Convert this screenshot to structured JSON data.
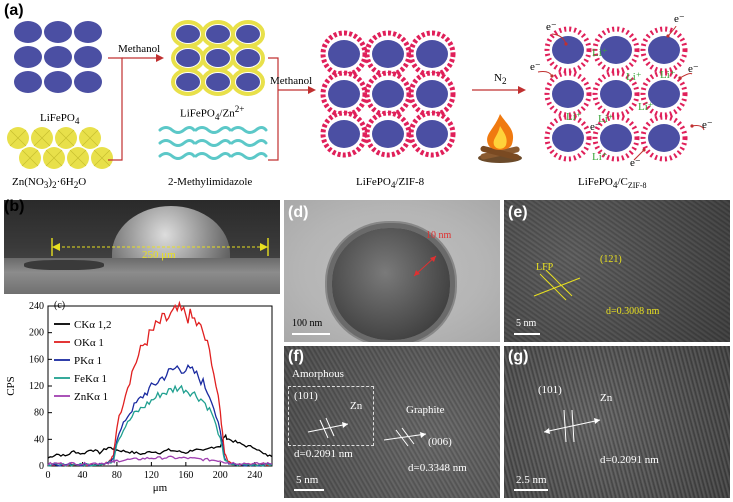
{
  "panel_a": {
    "label": "(a)",
    "lifepo4": "LiFePO",
    "lifepo4_sub": "4",
    "zn_salt_pre": "Zn(NO",
    "zn_salt_sub1": "3",
    "zn_salt_mid": ")",
    "zn_salt_sub2": "2",
    "zn_salt_post": "·6H",
    "zn_salt_sub3": "2",
    "zn_salt_end": "O",
    "methanol_1": "Methanol",
    "lifepo4_zn_pre": "LiFePO",
    "lifepo4_zn_sub": "4",
    "lifepo4_zn_mid": "/Zn",
    "lifepo4_zn_sup": "2+",
    "methylimidazole": "2-Methylimidazole",
    "methanol_2": "Methanol",
    "lifepo4_zif_pre": "LiFePO",
    "lifepo4_zif_sub": "4",
    "lifepo4_zif_post": "/ZIF-8",
    "n2": "N",
    "n2_sub": "2",
    "final_pre": "LiFePO",
    "final_sub": "4",
    "final_mid": "/C",
    "final_sub2": "ZIF-8",
    "electron": "e⁻",
    "li_ion": "Li⁺",
    "colors": {
      "core": "#4b4fa3",
      "zn_shell": "#e8e04a",
      "zif": "#e0205a",
      "mimi": "#5cc8c8",
      "arrow": "#c03030"
    }
  },
  "panel_b": {
    "label": "(b)",
    "scale": "250 μm"
  },
  "panel_c": {
    "label": "(c)"
  },
  "panel_d": {
    "label": "(d)",
    "thickness": "10 nm",
    "scale": "100 nm"
  },
  "panel_e": {
    "label": "(e)",
    "lfp": "LFP",
    "plane": "(121)",
    "dspacing": "d=0.3008 nm",
    "scale": "5 nm"
  },
  "panel_f": {
    "label": "(f)",
    "amorphous": "Amorphous",
    "plane1": "(101)",
    "zn": "Zn",
    "graphite": "Graphite",
    "plane2": "(006)",
    "d1": "d=0.2091 nm",
    "d2": "d=0.3348 nm",
    "scale": "5 nm"
  },
  "panel_g": {
    "label": "(g)",
    "plane": "(101)",
    "zn": "Zn",
    "dspacing": "d=0.2091 nm",
    "scale": "2.5 nm"
  },
  "chart_data": {
    "type": "line",
    "title": "",
    "xlabel": "μm",
    "ylabel": "CPS",
    "xlim": [
      0,
      260
    ],
    "ylim": [
      0,
      240
    ],
    "xticks": [
      0,
      40,
      80,
      120,
      160,
      200,
      240
    ],
    "yticks": [
      0,
      40,
      80,
      120,
      160,
      200,
      240
    ],
    "legend_position": "top-left",
    "x": [
      0,
      10,
      20,
      30,
      40,
      50,
      60,
      70,
      76,
      80,
      90,
      100,
      110,
      120,
      130,
      140,
      150,
      160,
      170,
      180,
      190,
      200,
      205,
      210,
      220,
      230,
      240,
      250,
      260
    ],
    "series": [
      {
        "name": "CKα 1,2",
        "color": "#000000",
        "values": [
          12,
          18,
          15,
          22,
          18,
          25,
          20,
          28,
          26,
          24,
          22,
          20,
          18,
          22,
          20,
          24,
          22,
          20,
          25,
          22,
          28,
          30,
          45,
          40,
          35,
          30,
          28,
          18,
          14
        ]
      },
      {
        "name": "OKα 1",
        "color": "#e02020",
        "values": [
          2,
          3,
          2,
          3,
          2,
          3,
          3,
          5,
          15,
          60,
          110,
          150,
          180,
          200,
          215,
          222,
          232,
          228,
          218,
          200,
          160,
          80,
          20,
          5,
          3,
          2,
          2,
          3,
          2
        ]
      },
      {
        "name": "PKα 1",
        "color": "#1a2aa0",
        "values": [
          2,
          2,
          2,
          3,
          2,
          2,
          3,
          4,
          10,
          40,
          70,
          90,
          105,
          118,
          130,
          140,
          148,
          145,
          140,
          125,
          100,
          50,
          12,
          4,
          2,
          2,
          2,
          2,
          2
        ]
      },
      {
        "name": "FeKα 1",
        "color": "#20a090",
        "values": [
          2,
          2,
          2,
          2,
          2,
          2,
          3,
          4,
          8,
          35,
          60,
          78,
          88,
          98,
          108,
          112,
          118,
          115,
          108,
          98,
          80,
          40,
          10,
          3,
          2,
          2,
          2,
          2,
          2
        ]
      },
      {
        "name": "ZnKα 1",
        "color": "#a040b0",
        "values": [
          3,
          4,
          3,
          4,
          3,
          4,
          4,
          5,
          6,
          8,
          9,
          10,
          11,
          12,
          12,
          13,
          12,
          12,
          11,
          10,
          9,
          8,
          6,
          5,
          4,
          4,
          3,
          4,
          3
        ]
      }
    ]
  }
}
